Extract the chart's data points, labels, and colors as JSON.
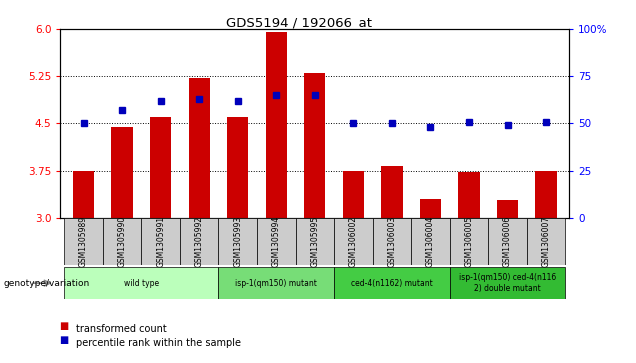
{
  "title": "GDS5194 / 192066_at",
  "samples": [
    "GSM1305989",
    "GSM1305990",
    "GSM1305991",
    "GSM1305992",
    "GSM1305993",
    "GSM1305994",
    "GSM1305995",
    "GSM1306002",
    "GSM1306003",
    "GSM1306004",
    "GSM1306005",
    "GSM1306006",
    "GSM1306007"
  ],
  "transformed_count": [
    3.75,
    4.45,
    4.6,
    5.22,
    4.6,
    5.95,
    5.3,
    3.75,
    3.82,
    3.3,
    3.73,
    3.28,
    3.75
  ],
  "percentile_rank": [
    50,
    57,
    62,
    63,
    62,
    65,
    65,
    50,
    50,
    48,
    51,
    49,
    51
  ],
  "bar_bottom": 3.0,
  "ylim_left": [
    3.0,
    6.0
  ],
  "ylim_right": [
    0,
    100
  ],
  "yticks_left": [
    3.0,
    3.75,
    4.5,
    5.25,
    6.0
  ],
  "yticks_right": [
    0,
    25,
    50,
    75,
    100
  ],
  "hlines": [
    3.75,
    4.5,
    5.25
  ],
  "bar_color": "#cc0000",
  "dot_color": "#0000bb",
  "group_ranges": [
    [
      0,
      3
    ],
    [
      4,
      6
    ],
    [
      7,
      9
    ],
    [
      10,
      12
    ]
  ],
  "group_labels": [
    "wild type",
    "isp-1(qm150) mutant",
    "ced-4(n1162) mutant",
    "isp-1(qm150) ced-4(n116\n2) double mutant"
  ],
  "group_colors": [
    "#bbffbb",
    "#77dd77",
    "#44cc44",
    "#33bb33"
  ],
  "genotype_label": "genotype/variation",
  "legend_items": [
    {
      "label": "transformed count",
      "color": "#cc0000"
    },
    {
      "label": "percentile rank within the sample",
      "color": "#0000bb"
    }
  ],
  "tick_bg_color": "#cccccc",
  "plot_bg": "#ffffff"
}
